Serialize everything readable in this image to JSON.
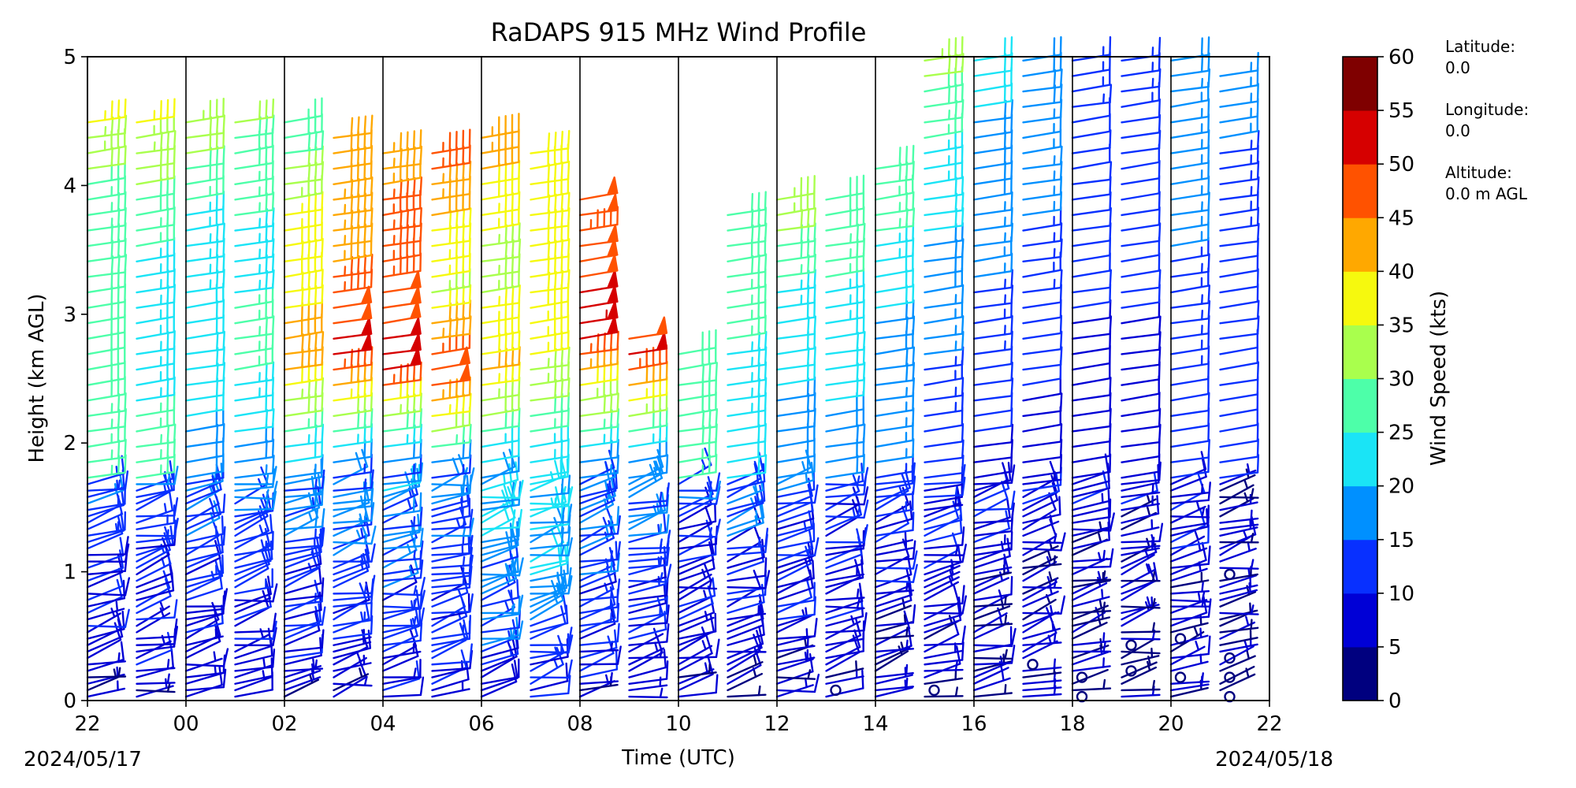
{
  "chart_data": {
    "type": "wind_barb_profile",
    "title": "RaDAPS 915 MHz Wind Profile",
    "xlabel": "Time (UTC)",
    "ylabel": "Height (km AGL)",
    "x_tick_labels": [
      "22",
      "00",
      "02",
      "04",
      "06",
      "08",
      "10",
      "12",
      "14",
      "16",
      "18",
      "20",
      "22"
    ],
    "x_tick_hours": [
      0,
      2,
      4,
      6,
      8,
      10,
      12,
      14,
      16,
      18,
      20,
      22,
      24
    ],
    "xlim_hours": [
      0,
      24
    ],
    "start_date": "2024/05/17",
    "end_date": "2024/05/18",
    "y_ticks": [
      0,
      1,
      2,
      3,
      4,
      5
    ],
    "ylim": [
      0,
      5
    ],
    "hourly_dividers_hours": [
      2,
      4,
      6,
      8,
      10,
      12,
      14,
      16,
      18,
      20,
      22
    ],
    "colorbar": {
      "label": "Wind Speed (kts)",
      "ticks": [
        0,
        5,
        10,
        15,
        20,
        25,
        30,
        35,
        40,
        45,
        50,
        55,
        60
      ],
      "colors": [
        "#00007f",
        "#0000d6",
        "#0830ff",
        "#0090ff",
        "#1ae4f6",
        "#4dffa9",
        "#a9ff4d",
        "#f6f90e",
        "#ffa800",
        "#ff5200",
        "#d60000",
        "#7f0000"
      ]
    },
    "site_info": [
      {
        "label": "Latitude:",
        "value": "0.0"
      },
      {
        "label": "Longitude:",
        "value": "0.0"
      },
      {
        "label": "Altitude:",
        "value": "0.0 m AGL"
      }
    ],
    "profile_columns": [
      {
        "hour": 0.0,
        "top_km": 4.5,
        "low_speed": 11,
        "upper": [
          [
            1.7,
            26
          ],
          [
            2.9,
            29
          ],
          [
            3.9,
            27
          ],
          [
            4.5,
            37
          ]
        ]
      },
      {
        "hour": 1.0,
        "top_km": 4.5,
        "low_speed": 12,
        "upper": [
          [
            1.7,
            26
          ],
          [
            2.8,
            24
          ],
          [
            3.4,
            24
          ],
          [
            4.5,
            36
          ]
        ]
      },
      {
        "hour": 2.0,
        "top_km": 4.5,
        "low_speed": 12,
        "upper": [
          [
            1.8,
            18
          ],
          [
            2.6,
            22
          ],
          [
            3.6,
            23
          ],
          [
            4.5,
            33
          ]
        ]
      },
      {
        "hour": 3.0,
        "top_km": 4.6,
        "low_speed": 12,
        "upper": [
          [
            1.8,
            18
          ],
          [
            2.6,
            26
          ],
          [
            3.6,
            24
          ],
          [
            4.6,
            31
          ]
        ]
      },
      {
        "hour": 4.0,
        "top_km": 4.5,
        "low_speed": 13,
        "upper": [
          [
            1.8,
            19
          ],
          [
            2.6,
            42
          ],
          [
            3.5,
            38
          ],
          [
            4.5,
            27
          ]
        ]
      },
      {
        "hour": 5.0,
        "top_km": 4.4,
        "low_speed": 13,
        "upper": [
          [
            1.8,
            17
          ],
          [
            2.7,
            51
          ],
          [
            3.4,
            45
          ],
          [
            4.4,
            40
          ]
        ]
      },
      {
        "hour": 6.0,
        "top_km": 4.3,
        "low_speed": 14,
        "upper": [
          [
            1.8,
            16
          ],
          [
            2.6,
            52
          ],
          [
            3.3,
            47
          ],
          [
            4.3,
            44
          ]
        ]
      },
      {
        "hour": 7.0,
        "top_km": 4.3,
        "low_speed": 13,
        "upper": [
          [
            1.8,
            17
          ],
          [
            2.5,
            51
          ],
          [
            3.2,
            34
          ],
          [
            4.3,
            48
          ]
        ]
      },
      {
        "hour": 8.0,
        "top_km": 4.4,
        "low_speed": 17,
        "upper": [
          [
            1.8,
            20
          ],
          [
            2.6,
            41
          ],
          [
            3.4,
            32
          ],
          [
            4.4,
            45
          ]
        ]
      },
      {
        "hour": 9.0,
        "top_km": 4.3,
        "low_speed": 18,
        "upper": [
          [
            1.8,
            22
          ],
          [
            2.6,
            35
          ],
          [
            3.4,
            40
          ],
          [
            4.3,
            38
          ]
        ]
      },
      {
        "hour": 10.0,
        "top_km": 3.9,
        "low_speed": 13,
        "upper": [
          [
            1.8,
            18
          ],
          [
            2.9,
            53
          ],
          [
            3.6,
            47
          ],
          [
            3.9,
            48
          ]
        ]
      },
      {
        "hour": 11.0,
        "top_km": 2.9,
        "low_speed": 13,
        "upper": [
          [
            1.8,
            18
          ],
          [
            2.7,
            51
          ],
          [
            2.9,
            48
          ]
        ]
      },
      {
        "hour": 12.0,
        "top_km": 2.8,
        "low_speed": 10,
        "upper": [
          [
            1.2,
            22
          ],
          [
            2.0,
            28
          ],
          [
            2.8,
            30
          ]
        ]
      },
      {
        "hour": 13.0,
        "top_km": 3.8,
        "low_speed": 11,
        "upper": [
          [
            1.3,
            19
          ],
          [
            2.5,
            24
          ],
          [
            3.8,
            30
          ]
        ]
      },
      {
        "hour": 14.0,
        "top_km": 4.0,
        "low_speed": 10,
        "upper": [
          [
            1.7,
            18
          ],
          [
            3.0,
            22
          ],
          [
            4.0,
            36
          ]
        ]
      },
      {
        "hour": 15.0,
        "top_km": 3.9,
        "low_speed": 10,
        "upper": [
          [
            1.6,
            17
          ],
          [
            2.8,
            22
          ],
          [
            3.9,
            30
          ]
        ]
      },
      {
        "hour": 16.0,
        "top_km": 4.2,
        "low_speed": 9,
        "upper": [
          [
            2.0,
            16
          ],
          [
            3.0,
            20
          ],
          [
            4.2,
            30
          ]
        ]
      },
      {
        "hour": 17.0,
        "top_km": 5.0,
        "low_speed": 8,
        "upper": [
          [
            2.0,
            12
          ],
          [
            3.2,
            18
          ],
          [
            4.2,
            24
          ],
          [
            5.0,
            33
          ]
        ]
      },
      {
        "hour": 18.0,
        "top_km": 5.0,
        "low_speed": 8,
        "upper": [
          [
            2.0,
            10
          ],
          [
            3.0,
            14
          ],
          [
            4.0,
            18
          ],
          [
            5.0,
            22
          ]
        ]
      },
      {
        "hour": 19.0,
        "top_km": 5.0,
        "low_speed": 7,
        "upper": [
          [
            2.0,
            9
          ],
          [
            3.0,
            12
          ],
          [
            4.0,
            16
          ],
          [
            5.0,
            19
          ]
        ]
      },
      {
        "hour": 20.0,
        "top_km": 5.0,
        "low_speed": 6,
        "upper": [
          [
            1.8,
            8
          ],
          [
            3.0,
            10
          ],
          [
            4.0,
            11
          ],
          [
            5.0,
            14
          ]
        ]
      },
      {
        "hour": 21.0,
        "top_km": 5.0,
        "low_speed": 6,
        "upper": [
          [
            1.8,
            8
          ],
          [
            3.0,
            10
          ],
          [
            4.0,
            12
          ],
          [
            5.0,
            13
          ]
        ]
      },
      {
        "hour": 22.0,
        "top_km": 5.0,
        "low_speed": 7,
        "upper": [
          [
            1.7,
            10
          ],
          [
            3.0,
            14
          ],
          [
            4.0,
            16
          ],
          [
            5.0,
            18
          ]
        ]
      },
      {
        "hour": 23.0,
        "top_km": 4.9,
        "low_speed": 5,
        "upper": [
          [
            1.2,
            9
          ],
          [
            2.5,
            12
          ],
          [
            3.5,
            12
          ],
          [
            4.9,
            17
          ]
        ]
      }
    ]
  }
}
